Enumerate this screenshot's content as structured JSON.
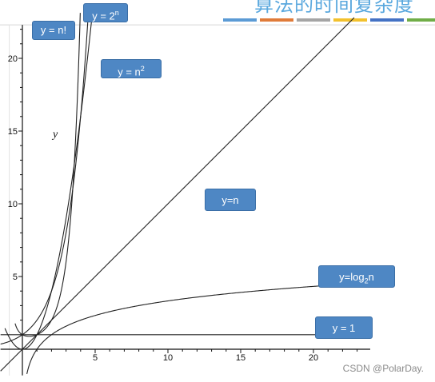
{
  "header": {
    "title": "算法的时间复杂度",
    "stripes": [
      "#5b9bd5",
      "#e07b39",
      "#a5a5a5",
      "#f2c12e",
      "#4472c4",
      "#70ad47"
    ]
  },
  "chart_data": {
    "type": "line",
    "title": "",
    "xlabel": "",
    "ylabel": "y",
    "xlim": [
      -2,
      24
    ],
    "ylim": [
      -2,
      24
    ],
    "x_ticks": [
      5,
      10,
      15,
      20
    ],
    "y_ticks": [
      5,
      10,
      15,
      20
    ],
    "grid": false,
    "series": [
      {
        "name": "y = n!",
        "formula": "factorial",
        "color": "#222222"
      },
      {
        "name": "y = 2ⁿ",
        "formula": "exp2",
        "color": "#222222"
      },
      {
        "name": "y = n²",
        "formula": "square",
        "color": "#222222"
      },
      {
        "name": "y=n",
        "formula": "linear",
        "color": "#222222"
      },
      {
        "name": "y=log₂n",
        "formula": "log2",
        "color": "#222222"
      },
      {
        "name": "y = 1",
        "formula": "constant",
        "color": "#222222"
      }
    ],
    "labels": [
      {
        "base": "y = n!",
        "sup": "",
        "sub": "",
        "tail": ""
      },
      {
        "base": "y = 2",
        "sup": "n",
        "sub": "",
        "tail": ""
      },
      {
        "base": "y = n",
        "sup": "2",
        "sub": "",
        "tail": ""
      },
      {
        "base": "y=n",
        "sup": "",
        "sub": "",
        "tail": ""
      },
      {
        "base": "y=log",
        "sup": "",
        "sub": "2",
        "tail": "n"
      },
      {
        "base": "y = 1",
        "sup": "",
        "sub": "",
        "tail": ""
      }
    ]
  },
  "watermark": "CSDN @PolarDay."
}
